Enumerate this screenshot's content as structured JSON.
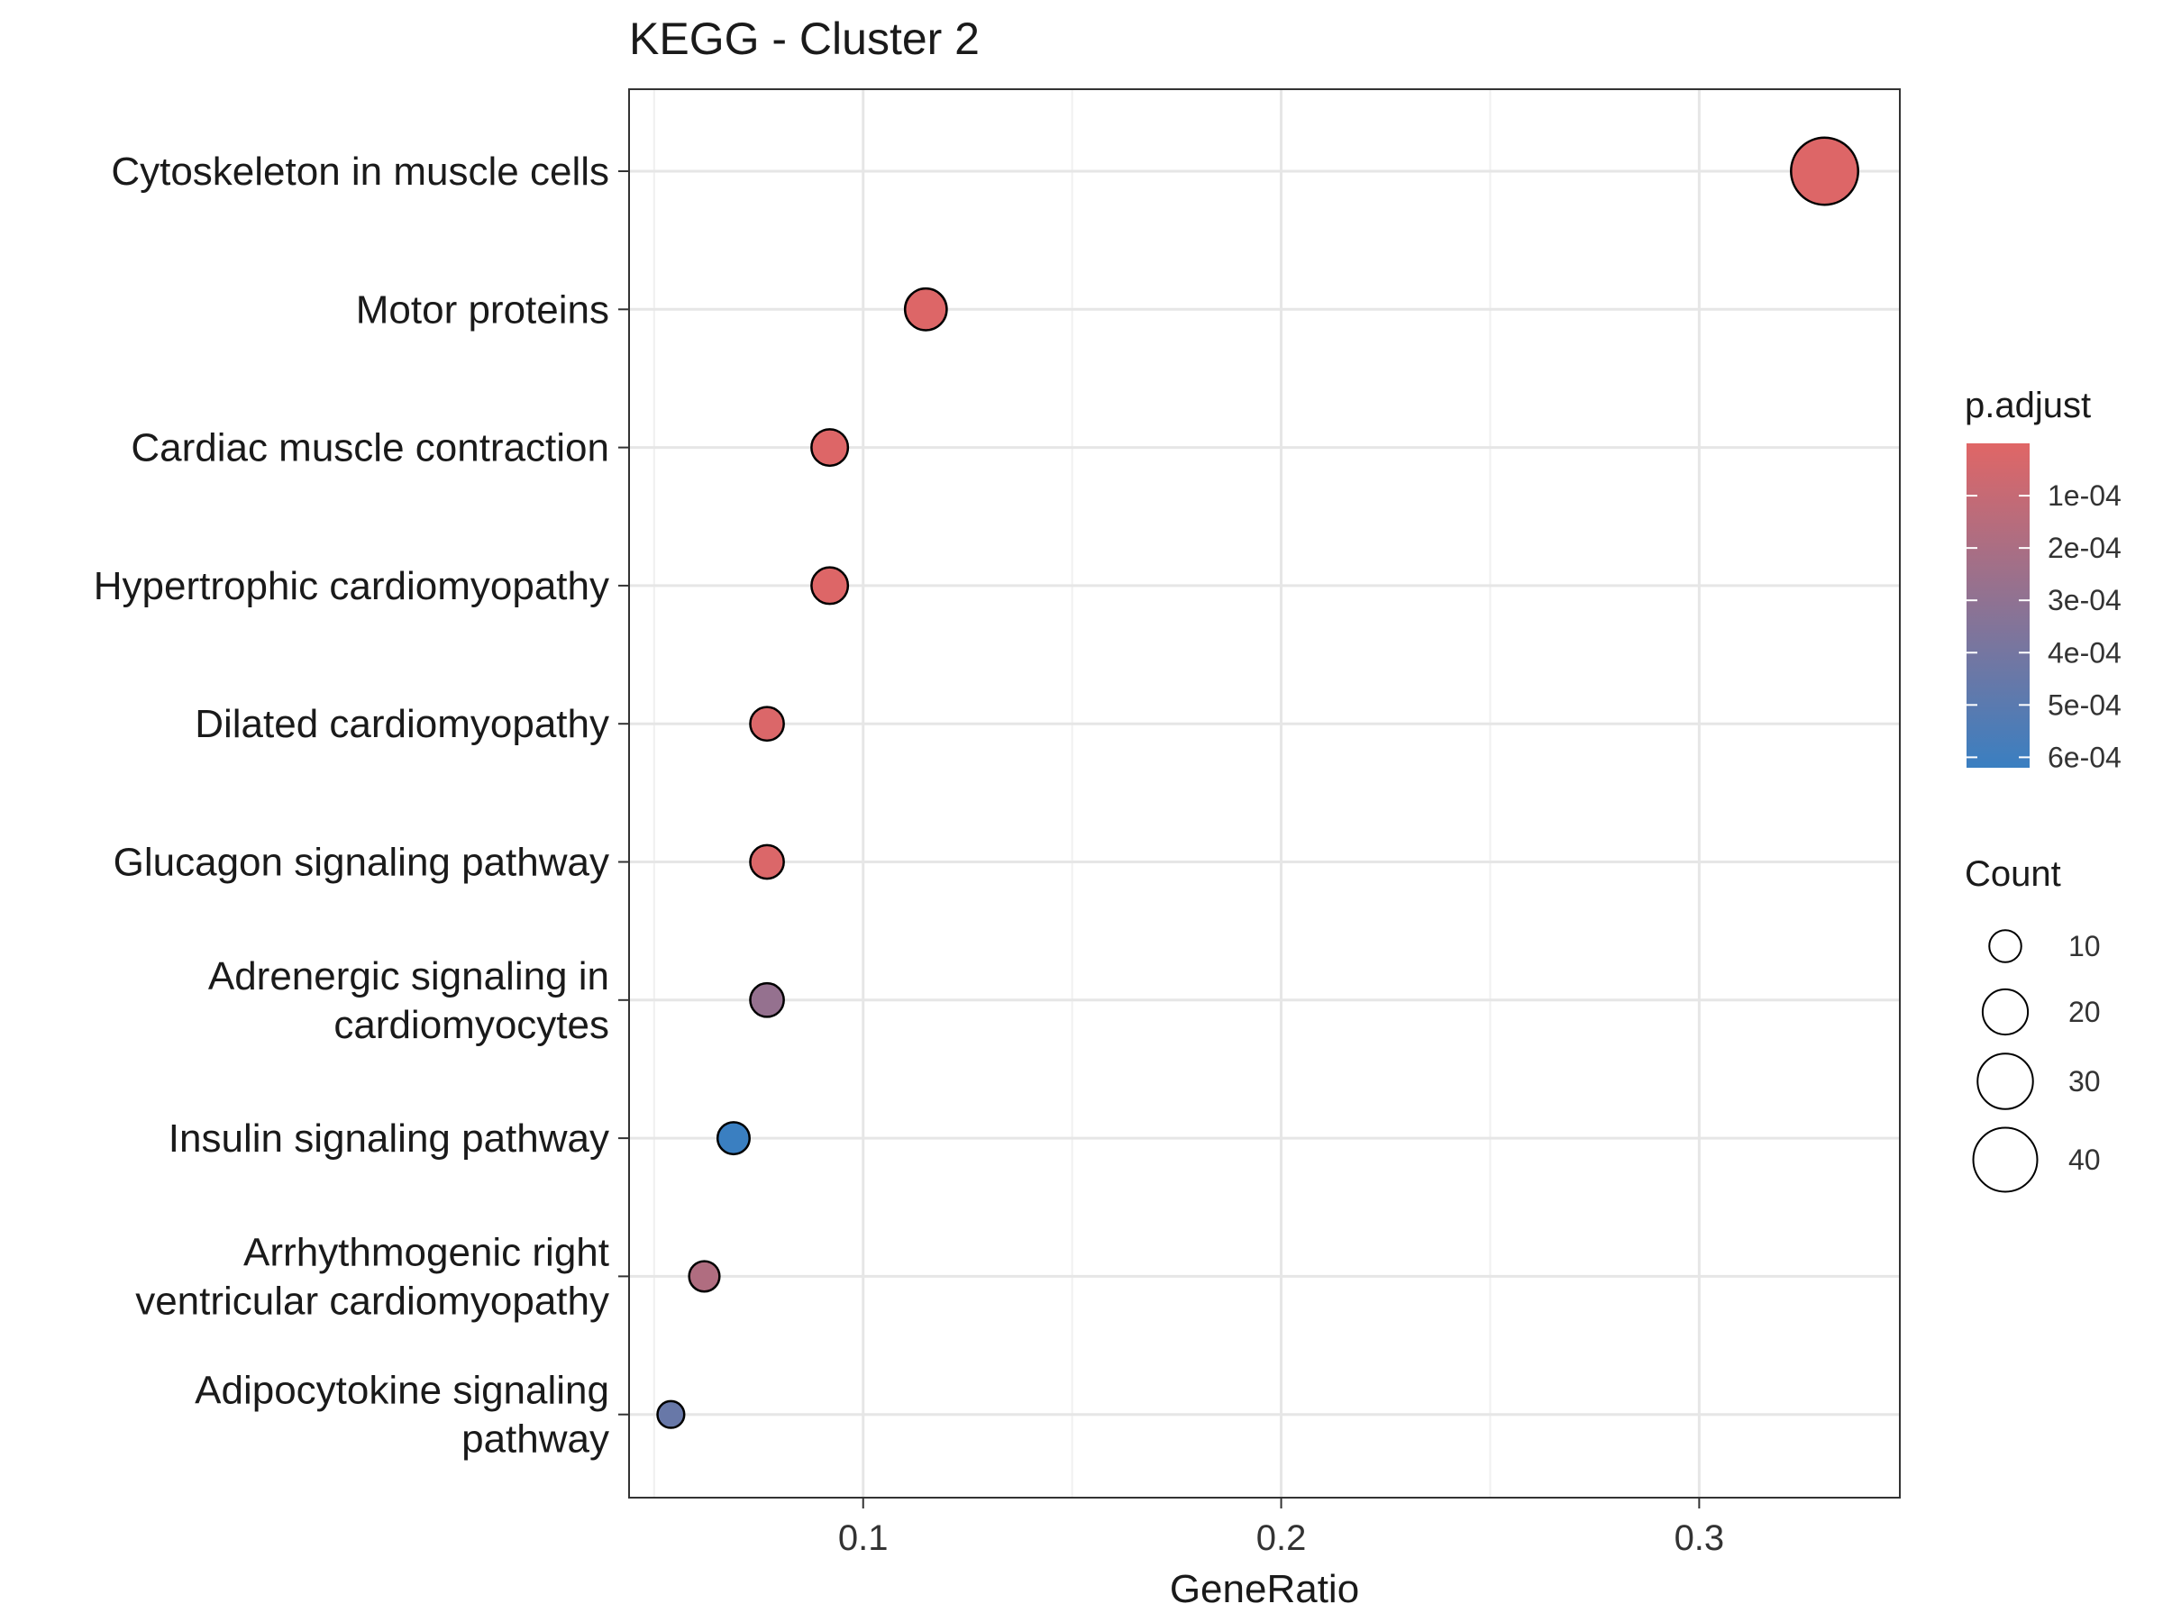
{
  "chart_data": {
    "type": "scatter",
    "title": "KEGG - Cluster 2",
    "xlabel": "GeneRatio",
    "ylabel": "",
    "xlim": [
      0.044,
      0.348
    ],
    "xticks": [
      0.1,
      0.2,
      0.3
    ],
    "xtick_labels": [
      "0.1",
      "0.2",
      "0.3"
    ],
    "grid": true,
    "categories": [
      {
        "label_lines": [
          "Cytoskeleton in muscle cells"
        ],
        "gene_ratio": 0.33,
        "count": 44,
        "p_adjust": 1e-05
      },
      {
        "label_lines": [
          "Motor proteins"
        ],
        "gene_ratio": 0.115,
        "count": 17,
        "p_adjust": 1e-05
      },
      {
        "label_lines": [
          "Cardiac muscle contraction"
        ],
        "gene_ratio": 0.092,
        "count": 13,
        "p_adjust": 1e-05
      },
      {
        "label_lines": [
          "Hypertrophic cardiomyopathy"
        ],
        "gene_ratio": 0.092,
        "count": 13,
        "p_adjust": 1e-05
      },
      {
        "label_lines": [
          "Dilated cardiomyopathy"
        ],
        "gene_ratio": 0.077,
        "count": 11,
        "p_adjust": 2e-05
      },
      {
        "label_lines": [
          "Glucagon signaling pathway"
        ],
        "gene_ratio": 0.077,
        "count": 11,
        "p_adjust": 2e-05
      },
      {
        "label_lines": [
          "Adrenergic signaling in",
          "cardiomyocytes"
        ],
        "gene_ratio": 0.077,
        "count": 11,
        "p_adjust": 0.00028
      },
      {
        "label_lines": [
          "Insulin signaling pathway"
        ],
        "gene_ratio": 0.069,
        "count": 10,
        "p_adjust": 0.00062
      },
      {
        "label_lines": [
          "Arrhythmogenic right",
          "ventricular cardiomyopathy"
        ],
        "gene_ratio": 0.062,
        "count": 9,
        "p_adjust": 0.00018
      },
      {
        "label_lines": [
          "Adipocytokine signaling",
          "pathway"
        ],
        "gene_ratio": 0.054,
        "count": 7,
        "p_adjust": 0.00045
      }
    ],
    "legend_color": {
      "title": "p.adjust",
      "domain": [
        0.0,
        0.00062
      ],
      "low_color": "#e06666",
      "high_color": "#3a7fc1",
      "ticks": [
        0.0001,
        0.0002,
        0.0003,
        0.0004,
        0.0005,
        0.0006
      ],
      "tick_labels": [
        "1e-04",
        "2e-04",
        "3e-04",
        "4e-04",
        "5e-04",
        "6e-04"
      ]
    },
    "legend_size": {
      "title": "Count",
      "values": [
        10,
        20,
        30,
        40
      ],
      "labels": [
        "10",
        "20",
        "30",
        "40"
      ]
    },
    "legend_placement": "right"
  }
}
